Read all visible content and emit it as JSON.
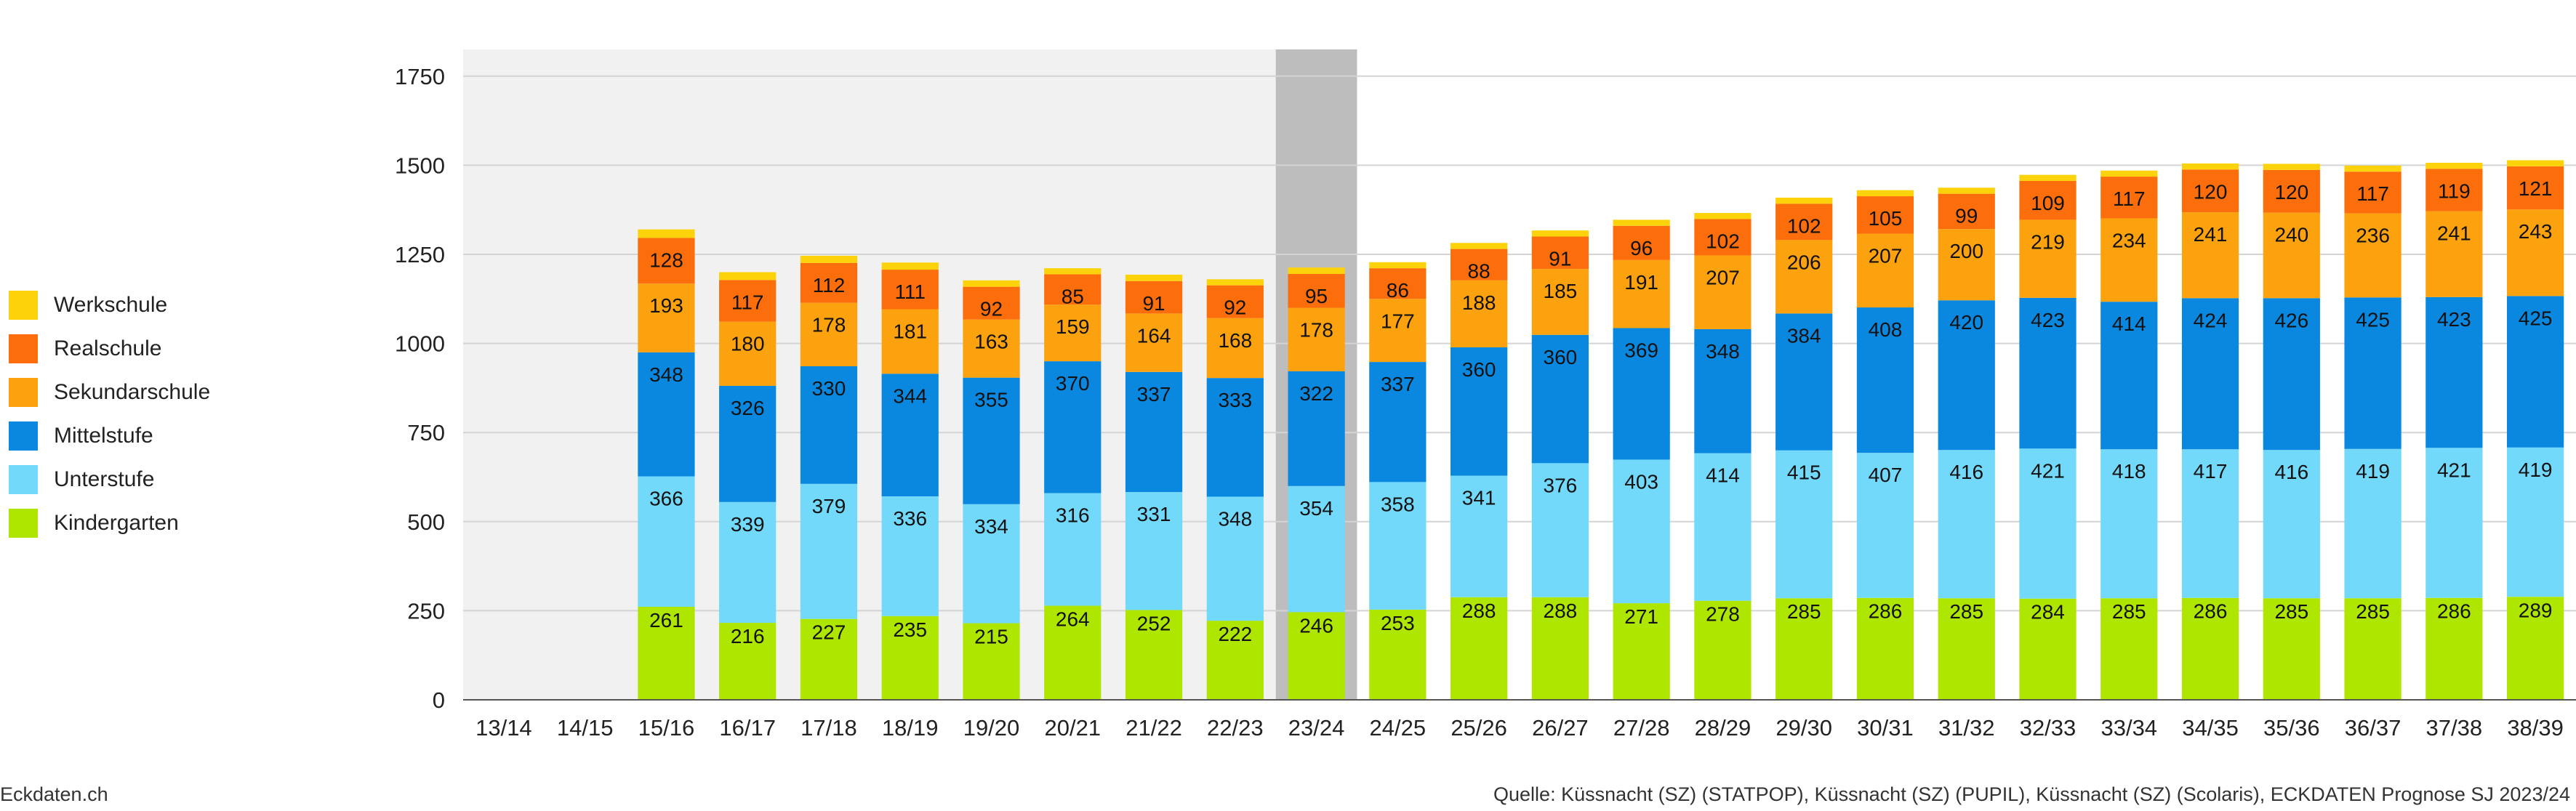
{
  "chart_data": {
    "type": "bar",
    "stacked": true,
    "categories": [
      "13/14",
      "14/15",
      "15/16",
      "16/17",
      "17/18",
      "18/19",
      "19/20",
      "20/21",
      "21/22",
      "22/23",
      "23/24",
      "24/25",
      "25/26",
      "26/27",
      "27/28",
      "28/29",
      "29/30",
      "30/31",
      "31/32",
      "32/33",
      "33/34",
      "34/35",
      "35/36",
      "36/37",
      "37/38",
      "38/39"
    ],
    "series": [
      {
        "name": "Kindergarten",
        "color": "#aee600",
        "values": [
          null,
          null,
          261,
          216,
          227,
          235,
          215,
          264,
          252,
          222,
          246,
          253,
          288,
          288,
          271,
          278,
          285,
          286,
          285,
          284,
          285,
          286,
          285,
          285,
          286,
          289
        ]
      },
      {
        "name": "Unterstufe",
        "color": "#72d9fb",
        "values": [
          null,
          null,
          366,
          339,
          379,
          336,
          334,
          316,
          331,
          348,
          354,
          358,
          341,
          376,
          403,
          414,
          415,
          407,
          416,
          421,
          418,
          417,
          416,
          419,
          421,
          419
        ]
      },
      {
        "name": "Mittelstufe",
        "color": "#0a88e0",
        "values": [
          null,
          null,
          348,
          326,
          330,
          344,
          355,
          370,
          337,
          333,
          322,
          337,
          360,
          360,
          369,
          348,
          384,
          408,
          420,
          423,
          414,
          424,
          426,
          425,
          423,
          425
        ]
      },
      {
        "name": "Sekundarschule",
        "color": "#fca20f",
        "values": [
          null,
          null,
          193,
          180,
          178,
          181,
          163,
          159,
          164,
          168,
          178,
          177,
          188,
          185,
          191,
          207,
          206,
          207,
          200,
          219,
          234,
          241,
          240,
          236,
          241,
          243
        ]
      },
      {
        "name": "Realschule",
        "color": "#fb6e0b",
        "values": [
          null,
          null,
          128,
          117,
          112,
          111,
          92,
          85,
          91,
          92,
          95,
          86,
          88,
          91,
          96,
          102,
          102,
          105,
          99,
          109,
          117,
          120,
          120,
          117,
          119,
          121
        ]
      },
      {
        "name": "Werkschule",
        "color": "#fcd20a",
        "values": [
          null,
          null,
          24,
          22,
          20,
          20,
          18,
          17,
          18,
          17,
          18,
          17,
          17,
          17,
          17,
          17,
          17,
          17,
          17,
          17,
          17,
          17,
          17,
          17,
          17,
          17
        ]
      }
    ],
    "ylim": [
      0,
      1825
    ],
    "yticks": [
      0,
      250,
      500,
      750,
      1000,
      1250,
      1500,
      1750
    ],
    "historical_range": [
      "13/14",
      "22/23"
    ],
    "current_year": "23/24",
    "label_series": [
      "Kindergarten",
      "Unterstufe",
      "Mittelstufe",
      "Sekundarschule",
      "Realschule"
    ],
    "grid": true,
    "legend_position": "left",
    "colors": {
      "historical_bg": "#f1f1f1",
      "current_bg": "#bdbdbd",
      "gridline": "#d4d4d4"
    }
  },
  "footer": {
    "left": "Eckdaten.ch",
    "right": "Quelle: Küssnacht (SZ) (STATPOP), Küssnacht (SZ) (PUPIL), Küssnacht (SZ) (Scolaris), ECKDATEN Prognose SJ 2023/24"
  }
}
